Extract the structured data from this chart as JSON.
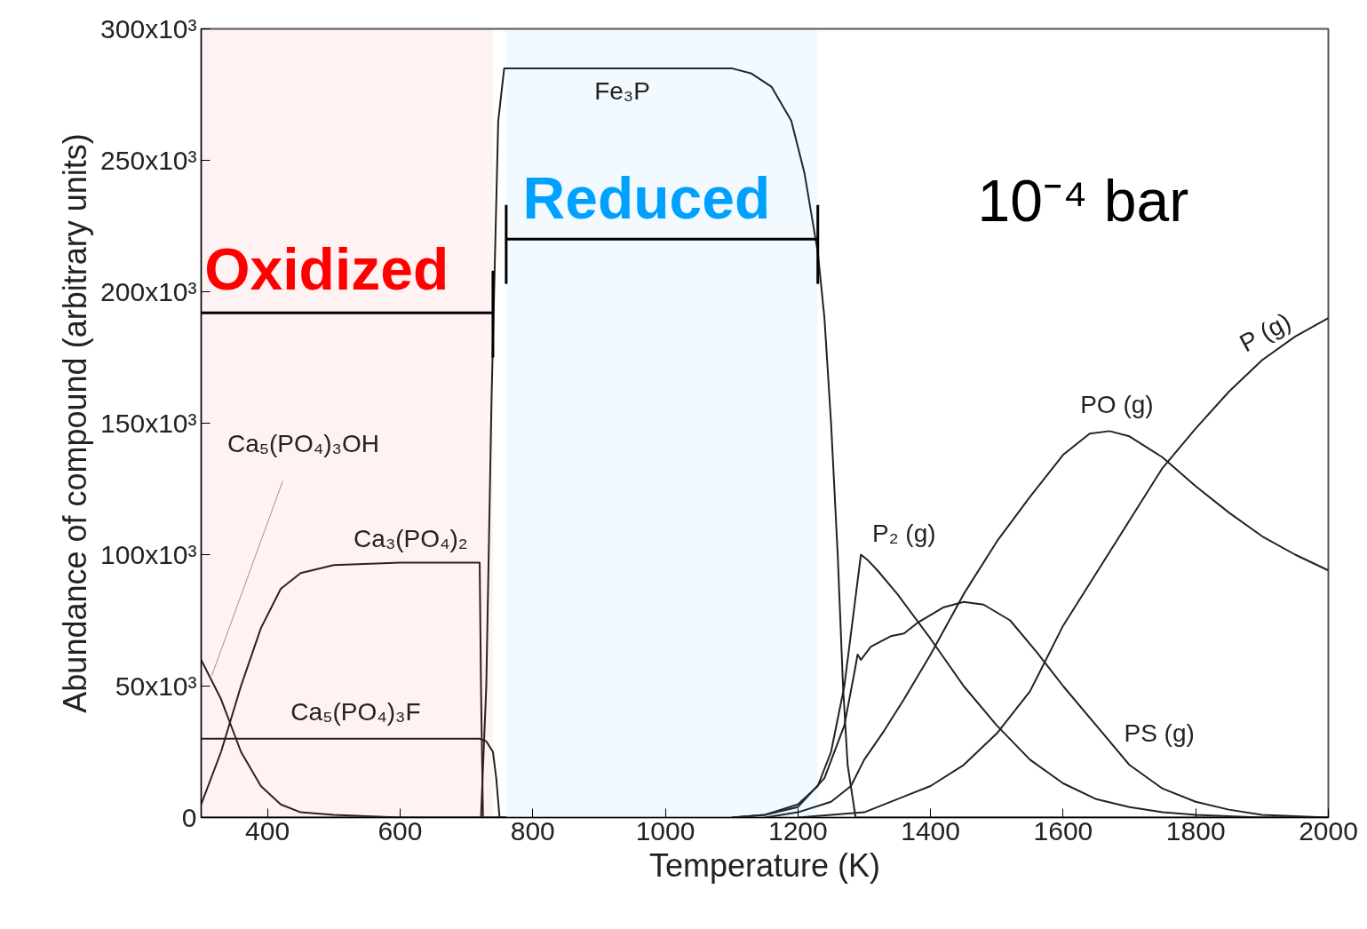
{
  "chart_data": {
    "type": "line",
    "xlabel": "Temperature (K)",
    "ylabel": "Abundance of compound (arbitrary units)",
    "xlim": [
      300,
      2000
    ],
    "ylim": [
      0,
      300000
    ],
    "xticks": [
      400,
      600,
      800,
      1000,
      1200,
      1400,
      1600,
      1800,
      2000
    ],
    "yticks": [
      {
        "value": 0,
        "label": "0"
      },
      {
        "value": 50000,
        "label": "50x10³"
      },
      {
        "value": 100000,
        "label": "100x10³"
      },
      {
        "value": 150000,
        "label": "150x10³"
      },
      {
        "value": 200000,
        "label": "200x10³"
      },
      {
        "value": 250000,
        "label": "250x10³"
      },
      {
        "value": 300000,
        "label": "300x10³"
      }
    ],
    "grid": false,
    "marker": "none",
    "line_style": "solid",
    "series": [
      {
        "name": "Fe₃P",
        "color": "#222222",
        "x": [
          300,
          722,
          730,
          738,
          748,
          757,
          1100,
          1130,
          1160,
          1190,
          1210,
          1230,
          1240,
          1250,
          1260,
          1268,
          1275,
          1287,
          2000
        ],
        "values": [
          0,
          0,
          50000,
          160000,
          265000,
          285000,
          285000,
          283000,
          278000,
          265000,
          245000,
          215000,
          190000,
          150000,
          100000,
          50000,
          20000,
          0,
          0
        ]
      },
      {
        "name": "Ca₃(PO₄)₂",
        "color": "#222222",
        "x": [
          300,
          330,
          360,
          390,
          420,
          450,
          500,
          600,
          720,
          722,
          725,
          760
        ],
        "values": [
          5000,
          25000,
          50000,
          72000,
          87000,
          93000,
          96000,
          97000,
          97000,
          50000,
          0,
          0
        ]
      },
      {
        "name": "Ca₅(PO₄)₃OH",
        "color": "#222222",
        "x": [
          300,
          330,
          360,
          390,
          420,
          450,
          500,
          600,
          760
        ],
        "values": [
          60000,
          45000,
          25000,
          12000,
          5000,
          2000,
          1000,
          0,
          0
        ]
      },
      {
        "name": "Ca₅(PO₄)₃F",
        "color": "#222222",
        "x": [
          300,
          720,
          730,
          740,
          745,
          750,
          760
        ],
        "values": [
          30000,
          30000,
          29000,
          25000,
          15000,
          0,
          0
        ]
      },
      {
        "name": "P₂ (g)",
        "color": "#222222",
        "x": [
          1100,
          1150,
          1200,
          1230,
          1250,
          1270,
          1285,
          1295,
          1305,
          1320,
          1350,
          1400,
          1450,
          1500,
          1550,
          1600,
          1650,
          1700,
          1750,
          1800,
          1900,
          2000
        ],
        "values": [
          0,
          1000,
          5000,
          12000,
          25000,
          50000,
          80000,
          100000,
          98000,
          94000,
          85000,
          68000,
          50000,
          35000,
          22000,
          13000,
          7000,
          4000,
          2000,
          1000,
          0,
          0
        ]
      },
      {
        "name": "PS (g)",
        "color": "#222222",
        "x": [
          1100,
          1150,
          1200,
          1240,
          1270,
          1285,
          1290,
          1295,
          1310,
          1340,
          1360,
          1380,
          1420,
          1450,
          1480,
          1520,
          1560,
          1600,
          1650,
          1700,
          1750,
          1800,
          1850,
          1900,
          2000
        ],
        "values": [
          0,
          1000,
          4000,
          15000,
          35000,
          55000,
          62000,
          60000,
          65000,
          69000,
          70000,
          74000,
          80000,
          82000,
          81000,
          75000,
          63000,
          50000,
          35000,
          20000,
          11000,
          6000,
          3000,
          1000,
          0
        ]
      },
      {
        "name": "PO (g)",
        "color": "#222222",
        "x": [
          1150,
          1200,
          1250,
          1280,
          1300,
          1330,
          1360,
          1400,
          1450,
          1500,
          1550,
          1600,
          1640,
          1670,
          1700,
          1750,
          1800,
          1850,
          1900,
          1950,
          2000
        ],
        "values": [
          0,
          2000,
          6000,
          12000,
          22000,
          33000,
          45000,
          62000,
          85000,
          105000,
          122000,
          138000,
          146000,
          147000,
          145000,
          137000,
          126000,
          116000,
          107000,
          100000,
          94000
        ]
      },
      {
        "name": "P (g)",
        "color": "#222222",
        "x": [
          1200,
          1300,
          1400,
          1450,
          1500,
          1550,
          1600,
          1650,
          1700,
          1750,
          1800,
          1850,
          1900,
          1950,
          2000
        ],
        "values": [
          0,
          2000,
          12000,
          20000,
          32000,
          48000,
          73000,
          93000,
          113000,
          133000,
          148000,
          162000,
          174000,
          183000,
          190000
        ]
      }
    ],
    "bands": [
      {
        "axis": "x",
        "from": 300,
        "to": 740,
        "label": "Oxidized",
        "color": "#ff0000"
      },
      {
        "axis": "x",
        "from": 760,
        "to": 1230,
        "label": "Reduced",
        "color": "#00a0ff"
      }
    ],
    "annotations": [
      "10⁻⁴ bar"
    ]
  }
}
